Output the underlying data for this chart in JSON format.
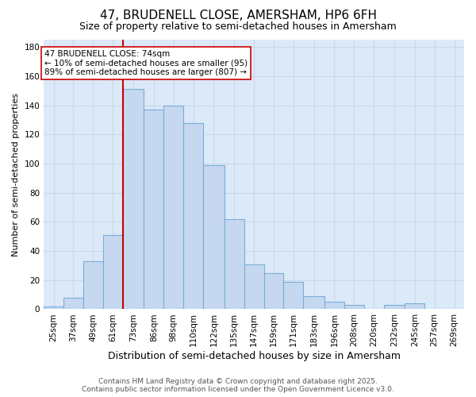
{
  "title": "47, BRUDENELL CLOSE, AMERSHAM, HP6 6FH",
  "subtitle": "Size of property relative to semi-detached houses in Amersham",
  "xlabel": "Distribution of semi-detached houses by size in Amersham",
  "ylabel": "Number of semi-detached properties",
  "bin_labels": [
    "25sqm",
    "37sqm",
    "49sqm",
    "61sqm",
    "73sqm",
    "86sqm",
    "98sqm",
    "110sqm",
    "122sqm",
    "135sqm",
    "147sqm",
    "159sqm",
    "171sqm",
    "183sqm",
    "196sqm",
    "208sqm",
    "220sqm",
    "232sqm",
    "245sqm",
    "257sqm",
    "269sqm"
  ],
  "bin_edges": [
    25,
    37,
    49,
    61,
    73,
    86,
    98,
    110,
    122,
    135,
    147,
    159,
    171,
    183,
    196,
    208,
    220,
    232,
    245,
    257,
    269,
    281
  ],
  "bar_heights": [
    2,
    8,
    33,
    51,
    151,
    137,
    140,
    128,
    99,
    62,
    31,
    25,
    19,
    9,
    5,
    3,
    0,
    3,
    4,
    0,
    0
  ],
  "highlight_bin_index": 4,
  "bar_color": "#c5d8f0",
  "bar_edge_color": "#7aaed6",
  "annotation_line_color": "#cc0000",
  "annotation_box_edge_color": "#cc0000",
  "annotation_text": "47 BRUDENELL CLOSE: 74sqm\n← 10% of semi-detached houses are smaller (95)\n89% of semi-detached houses are larger (807) →",
  "ylim": [
    0,
    185
  ],
  "yticks": [
    0,
    20,
    40,
    60,
    80,
    100,
    120,
    140,
    160,
    180
  ],
  "grid_color": "#c8d8ec",
  "bg_color": "#dce9f8",
  "footer": "Contains HM Land Registry data © Crown copyright and database right 2025.\nContains public sector information licensed under the Open Government Licence v3.0.",
  "title_fontsize": 11,
  "subtitle_fontsize": 9,
  "xlabel_fontsize": 9,
  "ylabel_fontsize": 8,
  "tick_fontsize": 7.5,
  "annotation_fontsize": 7.5,
  "footer_fontsize": 6.5
}
